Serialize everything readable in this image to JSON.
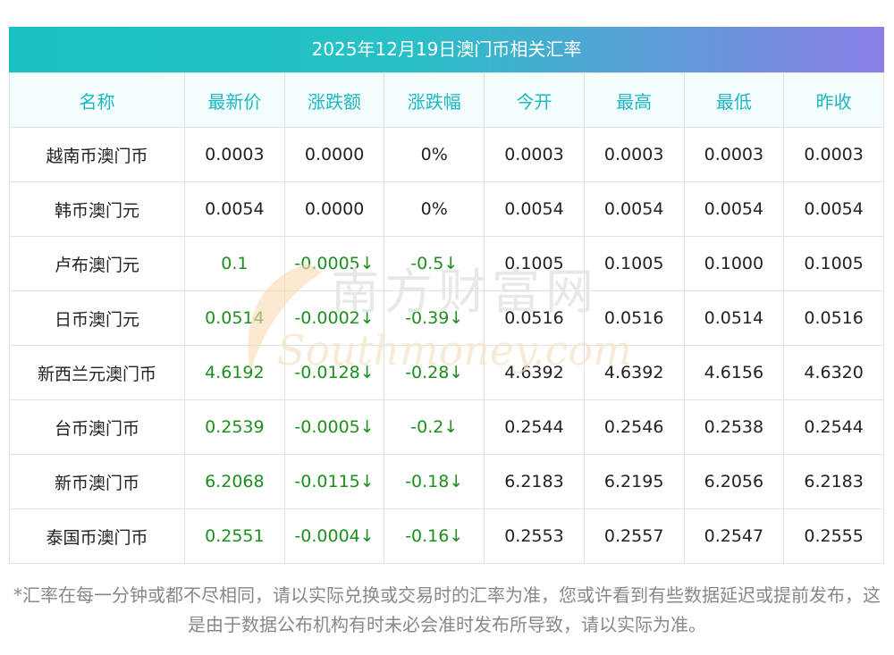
{
  "title": "2025年12月19日澳门币相关汇率",
  "headers": [
    "名称",
    "最新价",
    "涨跌额",
    "涨跌幅",
    "今开",
    "最高",
    "最低",
    "昨收"
  ],
  "rows": [
    {
      "name": "越南币澳门币",
      "latest": "0.0003",
      "change": "0.0000",
      "pct": "0%",
      "open": "0.0003",
      "high": "0.0003",
      "low": "0.0003",
      "prev": "0.0003",
      "down": false
    },
    {
      "name": "韩币澳门元",
      "latest": "0.0054",
      "change": "0.0000",
      "pct": "0%",
      "open": "0.0054",
      "high": "0.0054",
      "low": "0.0054",
      "prev": "0.0054",
      "down": false
    },
    {
      "name": "卢布澳门元",
      "latest": "0.1",
      "change": "-0.0005↓",
      "pct": "-0.5↓",
      "open": "0.1005",
      "high": "0.1005",
      "low": "0.1000",
      "prev": "0.1005",
      "down": true
    },
    {
      "name": "日币澳门元",
      "latest": "0.0514",
      "change": "-0.0002↓",
      "pct": "-0.39↓",
      "open": "0.0516",
      "high": "0.0516",
      "low": "0.0514",
      "prev": "0.0516",
      "down": true
    },
    {
      "name": "新西兰元澳门币",
      "latest": "4.6192",
      "change": "-0.0128↓",
      "pct": "-0.28↓",
      "open": "4.6392",
      "high": "4.6392",
      "low": "4.6156",
      "prev": "4.6320",
      "down": true
    },
    {
      "name": "台币澳门币",
      "latest": "0.2539",
      "change": "-0.0005↓",
      "pct": "-0.2↓",
      "open": "0.2544",
      "high": "0.2546",
      "low": "0.2538",
      "prev": "0.2544",
      "down": true
    },
    {
      "name": "新币澳门币",
      "latest": "6.2068",
      "change": "-0.0115↓",
      "pct": "-0.18↓",
      "open": "6.2183",
      "high": "6.2195",
      "low": "6.2056",
      "prev": "6.2183",
      "down": true
    },
    {
      "name": "泰国币澳门币",
      "latest": "0.2551",
      "change": "-0.0004↓",
      "pct": "-0.16↓",
      "open": "0.2553",
      "high": "0.2557",
      "low": "0.2547",
      "prev": "0.2555",
      "down": true
    }
  ],
  "watermark": {
    "cn": "南方财富网",
    "en": "Southmoney.com"
  },
  "note": "*汇率在每一分钟或都不尽相同，请以实际兑换或交易时的汇率为准，您或许看到有些数据延迟或提前发布，这是由于数据公布机构有时未必会准时发布所导致，请以实际为准。",
  "colors": {
    "header_text": "#1bb8c2",
    "down": "#1c8f1c",
    "gradient_start": "#19c1c4",
    "gradient_end": "#8a7ee6"
  }
}
